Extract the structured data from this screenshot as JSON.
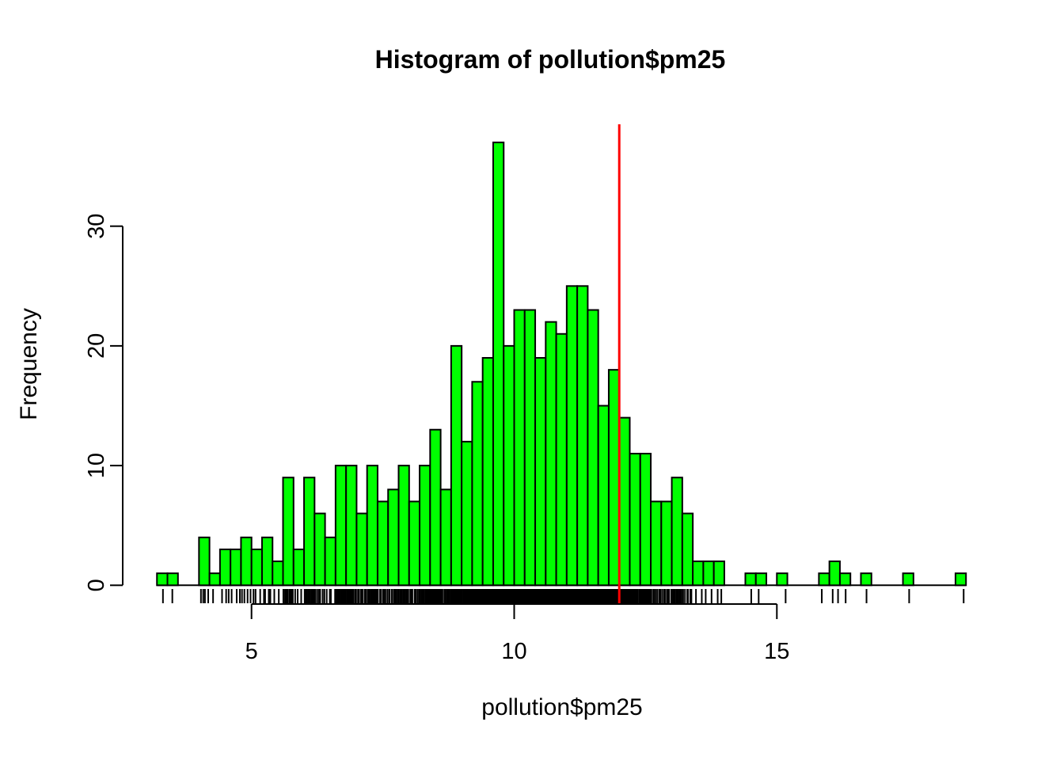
{
  "figure": {
    "background": "#FFFFFF",
    "text_color": "#000000"
  },
  "chart_data": {
    "type": "bar",
    "subtype": "histogram",
    "title": "Histogram of pollution$pm25",
    "xlabel": "pollution$pm25",
    "ylabel": "Frequency",
    "bin_start": 3.2,
    "bin_width": 0.2,
    "counts": [
      1,
      1,
      0,
      0,
      4,
      1,
      3,
      3,
      4,
      3,
      4,
      2,
      9,
      3,
      9,
      6,
      4,
      10,
      10,
      6,
      10,
      7,
      8,
      10,
      7,
      10,
      13,
      8,
      20,
      12,
      17,
      19,
      37,
      20,
      23,
      23,
      19,
      22,
      21,
      25,
      25,
      23,
      15,
      18,
      14,
      11,
      11,
      7,
      7,
      9,
      6,
      2,
      2,
      2,
      0,
      0,
      1,
      1,
      0,
      1,
      0,
      0,
      0,
      1,
      2,
      1,
      0,
      1,
      0,
      0,
      0,
      1,
      0,
      0,
      0,
      0,
      1
    ],
    "total_n": 576,
    "x_ticks": [
      5,
      10,
      15
    ],
    "y_ticks": [
      0,
      10,
      20,
      30
    ],
    "xlim": [
      2.584,
      19.216
    ],
    "ylim": [
      -1.48,
      38.48
    ],
    "grid": false,
    "legend": null,
    "bar_fill": "#00FF00",
    "bar_stroke": "#000000",
    "vline": {
      "x": 12,
      "color": "#FF0000"
    },
    "rug": {
      "present": true,
      "color": "#000000"
    }
  }
}
